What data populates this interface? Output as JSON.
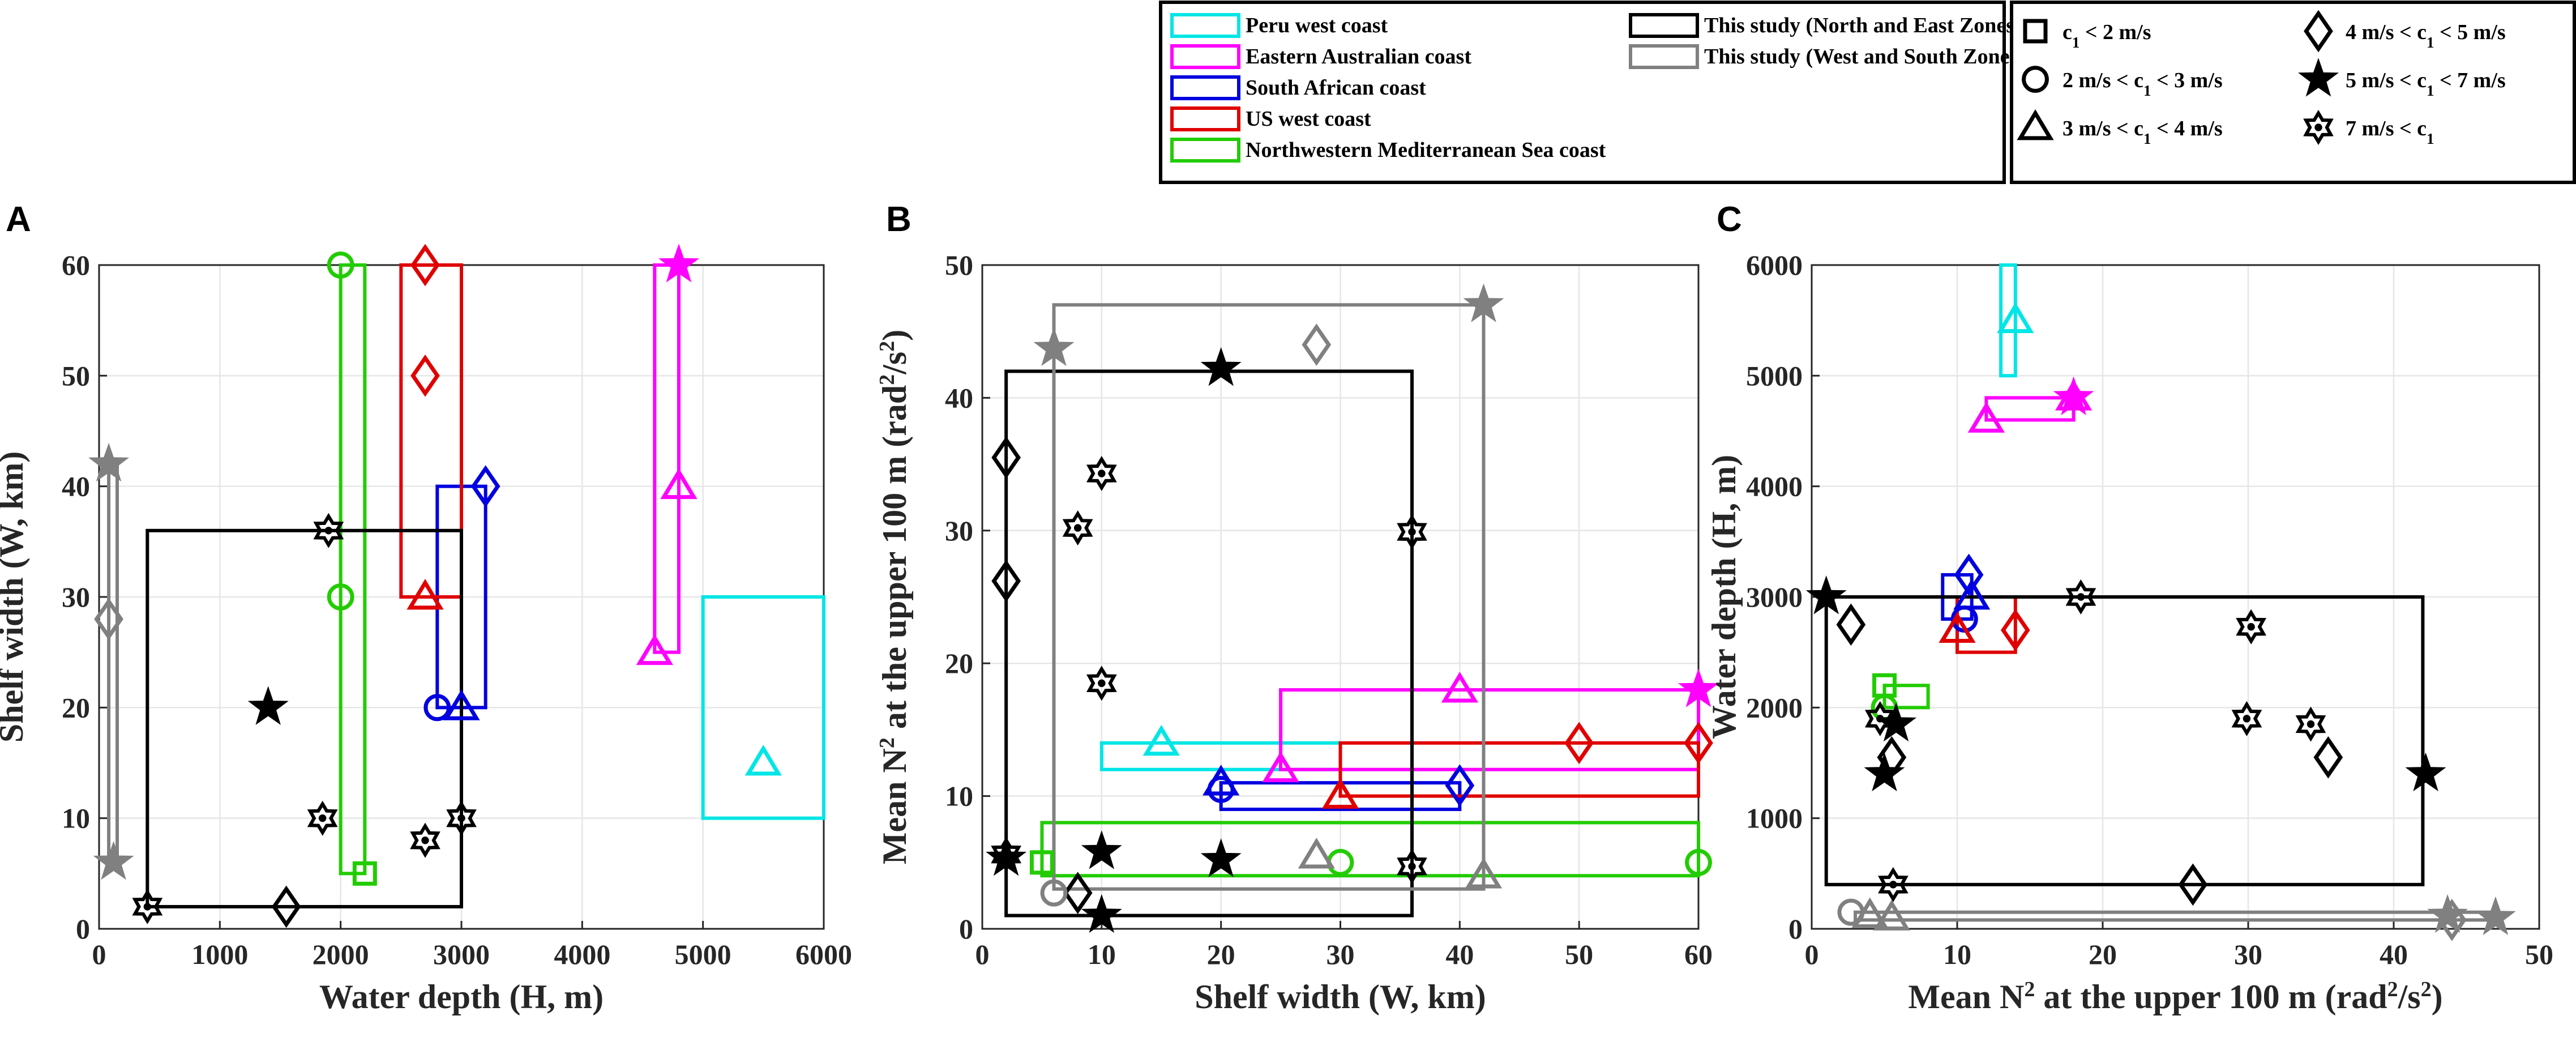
{
  "legends": {
    "regions": [
      {
        "label": "Peru west coast",
        "color": "#00e5e5"
      },
      {
        "label": "Eastern Australian coast",
        "color": "#ff00ff"
      },
      {
        "label": "South African coast",
        "color": "#0000e0"
      },
      {
        "label": "US west coast",
        "color": "#e00000"
      },
      {
        "label": "Northwestern Mediterranean Sea coast",
        "color": "#22cc00"
      },
      {
        "label": "This study (North and East Zones)",
        "color": "#000000"
      },
      {
        "label": "This study (West and South Zones)",
        "color": "#808080"
      }
    ],
    "markers": [
      {
        "label": "c1 < 2 m/s",
        "shape": "square"
      },
      {
        "label": "2 m/s < c1 < 3 m/s",
        "shape": "circle"
      },
      {
        "label": "3 m/s < c1 < 4 m/s",
        "shape": "triangle"
      },
      {
        "label": "4 m/s < c1 < 5 m/s",
        "shape": "diamond"
      },
      {
        "label": "5 m/s < c1 < 7 m/s",
        "shape": "star5"
      },
      {
        "label": "7 m/s < c1",
        "shape": "star6"
      }
    ]
  },
  "chart_data": [
    {
      "panel": "A",
      "type": "scatter",
      "xlabel": "Water depth (H, m)",
      "ylabel": "Shelf width (W, km)",
      "xlim": [
        0,
        6000
      ],
      "ylim": [
        0,
        60
      ],
      "xticks": [
        0,
        1000,
        2000,
        3000,
        4000,
        5000,
        6000
      ],
      "yticks": [
        0,
        10,
        20,
        30,
        40,
        50,
        60
      ],
      "grid": true,
      "boxes": [
        {
          "region": "Peru west coast",
          "x": [
            5000,
            6000
          ],
          "y": [
            10,
            30
          ]
        },
        {
          "region": "Eastern Australian coast",
          "x": [
            4600,
            4800
          ],
          "y": [
            25,
            60
          ]
        },
        {
          "region": "South African coast",
          "x": [
            2800,
            3200
          ],
          "y": [
            20,
            40
          ]
        },
        {
          "region": "US west coast",
          "x": [
            2500,
            3000
          ],
          "y": [
            30,
            60
          ]
        },
        {
          "region": "Northwestern Mediterranean Sea coast",
          "x": [
            2000,
            2200
          ],
          "y": [
            5,
            60
          ]
        },
        {
          "region": "This study (North and East Zones)",
          "x": [
            400,
            3000
          ],
          "y": [
            2,
            36
          ]
        },
        {
          "region": "This study (West and South Zones)",
          "x": [
            80,
            150
          ],
          "y": [
            6,
            42
          ]
        }
      ],
      "points": [
        {
          "region": "Peru west coast",
          "shape": "triangle",
          "x": 5500,
          "y": 15
        },
        {
          "region": "Eastern Australian coast",
          "shape": "triangle",
          "x": 4800,
          "y": 40
        },
        {
          "region": "Eastern Australian coast",
          "shape": "triangle",
          "x": 4600,
          "y": 25
        },
        {
          "region": "Eastern Australian coast",
          "shape": "star5",
          "x": 4800,
          "y": 60
        },
        {
          "region": "South African coast",
          "shape": "circle",
          "x": 2800,
          "y": 20
        },
        {
          "region": "South African coast",
          "shape": "triangle",
          "x": 3000,
          "y": 20
        },
        {
          "region": "South African coast",
          "shape": "diamond",
          "x": 3200,
          "y": 40
        },
        {
          "region": "US west coast",
          "shape": "diamond",
          "x": 2700,
          "y": 60
        },
        {
          "region": "US west coast",
          "shape": "diamond",
          "x": 2700,
          "y": 50
        },
        {
          "region": "US west coast",
          "shape": "triangle",
          "x": 2700,
          "y": 30
        },
        {
          "region": "Northwestern Mediterranean Sea coast",
          "shape": "circle",
          "x": 2000,
          "y": 60
        },
        {
          "region": "Northwestern Mediterranean Sea coast",
          "shape": "circle",
          "x": 2000,
          "y": 30
        },
        {
          "region": "Northwestern Mediterranean Sea coast",
          "shape": "square",
          "x": 2200,
          "y": 5
        },
        {
          "region": "This study (North and East Zones)",
          "shape": "star6",
          "x": 1900,
          "y": 36
        },
        {
          "region": "This study (North and East Zones)",
          "shape": "star5",
          "x": 1400,
          "y": 20
        },
        {
          "region": "This study (North and East Zones)",
          "shape": "star6",
          "x": 1850,
          "y": 10
        },
        {
          "region": "This study (North and East Zones)",
          "shape": "star6",
          "x": 2700,
          "y": 8
        },
        {
          "region": "This study (North and East Zones)",
          "shape": "star6",
          "x": 3000,
          "y": 10
        },
        {
          "region": "This study (North and East Zones)",
          "shape": "diamond",
          "x": 1550,
          "y": 2
        },
        {
          "region": "This study (North and East Zones)",
          "shape": "star6",
          "x": 400,
          "y": 2
        },
        {
          "region": "This study (West and South Zones)",
          "shape": "star5",
          "x": 80,
          "y": 42
        },
        {
          "region": "This study (West and South Zones)",
          "shape": "diamond",
          "x": 80,
          "y": 28
        },
        {
          "region": "This study (West and South Zones)",
          "shape": "star5",
          "x": 120,
          "y": 6
        }
      ]
    },
    {
      "panel": "B",
      "type": "scatter",
      "xlabel": "Shelf width (W, km)",
      "ylabel": "Mean N2 at the upper 100 m (rad2/s2)",
      "xlim": [
        0,
        60
      ],
      "ylim": [
        0,
        50
      ],
      "xticks": [
        0,
        10,
        20,
        30,
        40,
        50,
        60
      ],
      "yticks": [
        0,
        10,
        20,
        30,
        40,
        50
      ],
      "grid": true,
      "boxes": [
        {
          "region": "Peru west coast",
          "x": [
            10,
            30
          ],
          "y": [
            12,
            14
          ]
        },
        {
          "region": "Eastern Australian coast",
          "x": [
            25,
            60
          ],
          "y": [
            12,
            18
          ]
        },
        {
          "region": "South African coast",
          "x": [
            20,
            40
          ],
          "y": [
            9,
            11
          ]
        },
        {
          "region": "US west coast",
          "x": [
            30,
            60
          ],
          "y": [
            10,
            14
          ]
        },
        {
          "region": "Northwestern Mediterranean Sea coast",
          "x": [
            5,
            60
          ],
          "y": [
            4,
            8
          ]
        },
        {
          "region": "This study (North and East Zones)",
          "x": [
            2,
            36
          ],
          "y": [
            1,
            42
          ]
        },
        {
          "region": "This study (West and South Zones)",
          "x": [
            6,
            42
          ],
          "y": [
            3,
            47
          ]
        }
      ],
      "points": [
        {
          "region": "Peru west coast",
          "shape": "triangle",
          "x": 15,
          "y": 14
        },
        {
          "region": "Eastern Australian coast",
          "shape": "triangle",
          "x": 25,
          "y": 12
        },
        {
          "region": "Eastern Australian coast",
          "shape": "triangle",
          "x": 40,
          "y": 18
        },
        {
          "region": "Eastern Australian coast",
          "shape": "star5",
          "x": 60,
          "y": 18
        },
        {
          "region": "South African coast",
          "shape": "circle",
          "x": 20,
          "y": 10.5
        },
        {
          "region": "South African coast",
          "shape": "triangle",
          "x": 20,
          "y": 11
        },
        {
          "region": "South African coast",
          "shape": "diamond",
          "x": 40,
          "y": 10.8
        },
        {
          "region": "US west coast",
          "shape": "triangle",
          "x": 30,
          "y": 10
        },
        {
          "region": "US west coast",
          "shape": "diamond",
          "x": 50,
          "y": 14
        },
        {
          "region": "US west coast",
          "shape": "diamond",
          "x": 60,
          "y": 14
        },
        {
          "region": "Northwestern Mediterranean Sea coast",
          "shape": "square",
          "x": 5,
          "y": 5
        },
        {
          "region": "Northwestern Mediterranean Sea coast",
          "shape": "circle",
          "x": 30,
          "y": 5
        },
        {
          "region": "Northwestern Mediterranean Sea coast",
          "shape": "circle",
          "x": 60,
          "y": 5
        },
        {
          "region": "This study (North and East Zones)",
          "shape": "diamond",
          "x": 2,
          "y": 35.5
        },
        {
          "region": "This study (North and East Zones)",
          "shape": "diamond",
          "x": 2,
          "y": 26.2
        },
        {
          "region": "This study (North and East Zones)",
          "shape": "star6",
          "x": 2,
          "y": 5.6
        },
        {
          "region": "This study (North and East Zones)",
          "shape": "star5",
          "x": 2,
          "y": 5.3
        },
        {
          "region": "This study (North and East Zones)",
          "shape": "star6",
          "x": 8,
          "y": 30.2
        },
        {
          "region": "This study (North and East Zones)",
          "shape": "star6",
          "x": 10,
          "y": 34.3
        },
        {
          "region": "This study (North and East Zones)",
          "shape": "star6",
          "x": 10,
          "y": 18.5
        },
        {
          "region": "This study (North and East Zones)",
          "shape": "star5",
          "x": 10,
          "y": 5.8
        },
        {
          "region": "This study (North and East Zones)",
          "shape": "star5",
          "x": 10,
          "y": 1
        },
        {
          "region": "This study (North and East Zones)",
          "shape": "diamond",
          "x": 8,
          "y": 2.7
        },
        {
          "region": "This study (North and East Zones)",
          "shape": "star5",
          "x": 20,
          "y": 42.2
        },
        {
          "region": "This study (North and East Zones)",
          "shape": "star5",
          "x": 20,
          "y": 5.2
        },
        {
          "region": "This study (North and East Zones)",
          "shape": "star6",
          "x": 36,
          "y": 29.9
        },
        {
          "region": "This study (North and East Zones)",
          "shape": "star6",
          "x": 36,
          "y": 4.7
        },
        {
          "region": "This study (West and South Zones)",
          "shape": "star5",
          "x": 6,
          "y": 43.7
        },
        {
          "region": "This study (West and South Zones)",
          "shape": "circle",
          "x": 6,
          "y": 2.7
        },
        {
          "region": "This study (West and South Zones)",
          "shape": "diamond",
          "x": 28,
          "y": 44
        },
        {
          "region": "This study (West and South Zones)",
          "shape": "triangle",
          "x": 28,
          "y": 5.5
        },
        {
          "region": "This study (West and South Zones)",
          "shape": "star5",
          "x": 42,
          "y": 47
        },
        {
          "region": "This study (West and South Zones)",
          "shape": "triangle",
          "x": 42,
          "y": 4
        }
      ]
    },
    {
      "panel": "C",
      "type": "scatter",
      "xlabel": "Mean N2 at the upper 100 m (rad2/s2)",
      "ylabel": "Water depth (H, m)",
      "xlim": [
        0,
        50
      ],
      "ylim": [
        0,
        6000
      ],
      "xticks": [
        0,
        10,
        20,
        30,
        40,
        50
      ],
      "yticks": [
        0,
        1000,
        2000,
        3000,
        4000,
        5000,
        6000
      ],
      "grid": true,
      "boxes": [
        {
          "region": "Peru west coast",
          "x": [
            13,
            14
          ],
          "y": [
            5000,
            6000
          ]
        },
        {
          "region": "Eastern Australian coast",
          "x": [
            12,
            18
          ],
          "y": [
            4600,
            4800
          ]
        },
        {
          "region": "South African coast",
          "x": [
            9,
            11
          ],
          "y": [
            2800,
            3200
          ]
        },
        {
          "region": "US west coast",
          "x": [
            10,
            14
          ],
          "y": [
            2500,
            3000
          ]
        },
        {
          "region": "Northwestern Mediterranean Sea coast",
          "x": [
            5,
            8
          ],
          "y": [
            2000,
            2200
          ]
        },
        {
          "region": "This study (North and East Zones)",
          "x": [
            1,
            42
          ],
          "y": [
            400,
            3000
          ]
        },
        {
          "region": "This study (West and South Zones)",
          "x": [
            3,
            47
          ],
          "y": [
            80,
            150
          ]
        }
      ],
      "points": [
        {
          "region": "Peru west coast",
          "shape": "triangle",
          "x": 14,
          "y": 5500
        },
        {
          "region": "Eastern Australian coast",
          "shape": "triangle",
          "x": 12,
          "y": 4600
        },
        {
          "region": "Eastern Australian coast",
          "shape": "triangle",
          "x": 18,
          "y": 4800
        },
        {
          "region": "Eastern Australian coast",
          "shape": "star5",
          "x": 18,
          "y": 4800
        },
        {
          "region": "South African coast",
          "shape": "diamond",
          "x": 10.8,
          "y": 3200
        },
        {
          "region": "South African coast",
          "shape": "triangle",
          "x": 11,
          "y": 3000
        },
        {
          "region": "South African coast",
          "shape": "circle",
          "x": 10.5,
          "y": 2800
        },
        {
          "region": "US west coast",
          "shape": "triangle",
          "x": 10,
          "y": 2700
        },
        {
          "region": "US west coast",
          "shape": "diamond",
          "x": 14,
          "y": 2700
        },
        {
          "region": "Northwestern Mediterranean Sea coast",
          "shape": "square",
          "x": 5,
          "y": 2200
        },
        {
          "region": "Northwestern Mediterranean Sea coast",
          "shape": "circle",
          "x": 5,
          "y": 2000
        },
        {
          "region": "This study (North and East Zones)",
          "shape": "star5",
          "x": 1,
          "y": 3000
        },
        {
          "region": "This study (North and East Zones)",
          "shape": "diamond",
          "x": 2.7,
          "y": 2750
        },
        {
          "region": "This study (North and East Zones)",
          "shape": "star6",
          "x": 4.7,
          "y": 1900
        },
        {
          "region": "This study (North and East Zones)",
          "shape": "star5",
          "x": 5.8,
          "y": 1850
        },
        {
          "region": "This study (North and East Zones)",
          "shape": "diamond",
          "x": 5.5,
          "y": 1550
        },
        {
          "region": "This study (North and East Zones)",
          "shape": "star5",
          "x": 5,
          "y": 1400
        },
        {
          "region": "This study (North and East Zones)",
          "shape": "star6",
          "x": 5.6,
          "y": 400
        },
        {
          "region": "This study (North and East Zones)",
          "shape": "star6",
          "x": 18.5,
          "y": 3000
        },
        {
          "region": "This study (North and East Zones)",
          "shape": "star6",
          "x": 30.2,
          "y": 2730
        },
        {
          "region": "This study (North and East Zones)",
          "shape": "star6",
          "x": 29.9,
          "y": 1900
        },
        {
          "region": "This study (North and East Zones)",
          "shape": "star6",
          "x": 34.3,
          "y": 1850
        },
        {
          "region": "This study (North and East Zones)",
          "shape": "diamond",
          "x": 35.5,
          "y": 1550
        },
        {
          "region": "This study (North and East Zones)",
          "shape": "star5",
          "x": 42.2,
          "y": 1400
        },
        {
          "region": "This study (North and East Zones)",
          "shape": "diamond",
          "x": 26.2,
          "y": 400
        },
        {
          "region": "This study (West and South Zones)",
          "shape": "circle",
          "x": 2.7,
          "y": 150
        },
        {
          "region": "This study (West and South Zones)",
          "shape": "triangle",
          "x": 4,
          "y": 120
        },
        {
          "region": "This study (West and South Zones)",
          "shape": "triangle",
          "x": 5.5,
          "y": 100
        },
        {
          "region": "This study (West and South Zones)",
          "shape": "star5",
          "x": 43.7,
          "y": 120
        },
        {
          "region": "This study (West and South Zones)",
          "shape": "diamond",
          "x": 44,
          "y": 80
        },
        {
          "region": "This study (West and South Zones)",
          "shape": "star5",
          "x": 47,
          "y": 100
        }
      ]
    }
  ]
}
